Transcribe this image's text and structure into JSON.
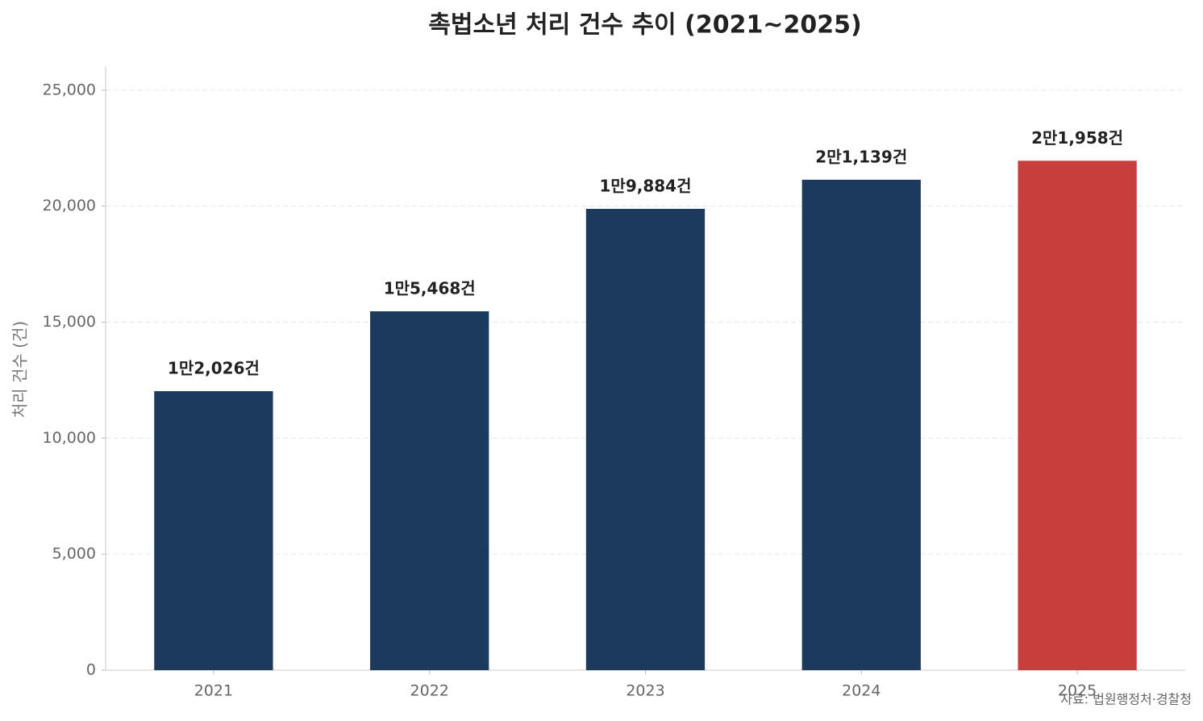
{
  "chart_data": {
    "type": "bar",
    "title": "촉법소년 처리 건수 추이 (2021~2025)",
    "ylabel": "처리 건수 (건)",
    "source": "자료: 법원행정처·경찰청",
    "categories": [
      "2021",
      "2022",
      "2023",
      "2024",
      "2025"
    ],
    "values": [
      12026,
      15468,
      19884,
      21139,
      21958
    ],
    "value_labels": [
      "1만2,026건",
      "1만5,468건",
      "1만9,884건",
      "2만1,139건",
      "2만1,958건"
    ],
    "colors": [
      "#1b3a5c",
      "#1b3a5c",
      "#1b3a5c",
      "#1b3a5c",
      "#c83e3c"
    ],
    "ylim": [
      0,
      26000
    ],
    "yticks": [
      0,
      {
        "value": 5000,
        "label": "5,000"
      },
      {
        "value": 10000,
        "label": "10,000"
      },
      {
        "value": 15000,
        "label": "15,000"
      },
      {
        "value": 20000,
        "label": "20,000"
      },
      {
        "value": 25000,
        "label": "25,000"
      }
    ],
    "grid": true
  }
}
